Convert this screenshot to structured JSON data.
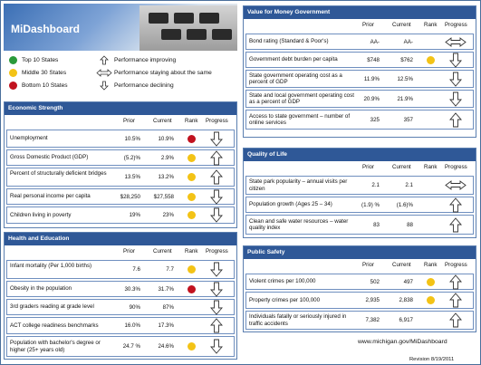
{
  "app": {
    "title": "MiDashboard"
  },
  "legend": {
    "top10": "Top 10 States",
    "middle30": "Middle 30 States",
    "bottom10": "Bottom 10 States",
    "improving": "Performance improving",
    "same": "Performance staying about the same",
    "declining": "Performance declining"
  },
  "columns": {
    "prior": "Prior",
    "current": "Current",
    "rank": "Rank",
    "progress": "Progress"
  },
  "economic": {
    "title": "Economic Strength",
    "rows": [
      {
        "label": "Unemployment",
        "prior": "10.5%",
        "current": "10.9%",
        "rank": "red",
        "progress": "down"
      },
      {
        "label": "Gross Domestic Product (GDP)",
        "prior": "(5.2)%",
        "current": "2.9%",
        "rank": "yellow",
        "progress": "up"
      },
      {
        "label": "Percent of structurally deficient bridges",
        "prior": "13.5%",
        "current": "13.2%",
        "rank": "yellow",
        "progress": "up"
      },
      {
        "label": "Real personal income per capita",
        "prior": "$28,250",
        "current": "$27,558",
        "rank": "yellow",
        "progress": "down"
      },
      {
        "label": "Children living in poverty",
        "prior": "19%",
        "current": "23%",
        "rank": "yellow",
        "progress": "down"
      }
    ]
  },
  "health": {
    "title": "Health and Education",
    "rows": [
      {
        "label": "Infant mortality (Per 1,000 births)",
        "prior": "7.6",
        "current": "7.7",
        "rank": "yellow",
        "progress": "down"
      },
      {
        "label": "Obesity in the population",
        "prior": "30.3%",
        "current": "31.7%",
        "rank": "red",
        "progress": "down"
      },
      {
        "label": "3rd graders reading at grade level",
        "prior": "90%",
        "current": "87%",
        "rank": "",
        "progress": "down"
      },
      {
        "label": "ACT college readiness benchmarks",
        "prior": "16.0%",
        "current": "17.3%",
        "rank": "",
        "progress": "up"
      },
      {
        "label": "Population with bachelor's degree or higher  (25+ years old)",
        "prior": "24.7 %",
        "current": "24.6%",
        "rank": "yellow",
        "progress": "down"
      }
    ]
  },
  "value": {
    "title": "Value for Money Government",
    "rows": [
      {
        "label": "Bond rating (Standard & Poor's)",
        "prior": "AA-",
        "current": "AA-",
        "rank": "",
        "progress": "same"
      },
      {
        "label": "Government debt burden per capita",
        "prior": "$748",
        "current": "$762",
        "rank": "yellow",
        "progress": "down"
      },
      {
        "label": "State government operating cost as a percent of GDP",
        "prior": "11.9%",
        "current": "12.5%",
        "rank": "",
        "progress": "down"
      },
      {
        "label": "State and  local government operating cost as a percent of GDP",
        "prior": "20.9%",
        "current": "21.9%",
        "rank": "",
        "progress": "down"
      },
      {
        "label": "Access to state government – number of online services",
        "prior": "325",
        "current": "357",
        "rank": "",
        "progress": "up"
      }
    ]
  },
  "quality": {
    "title": "Quality of Life",
    "rows": [
      {
        "label": "State park popularity – annual visits per citizen",
        "prior": "2.1",
        "current": "2.1",
        "rank": "",
        "progress": "same"
      },
      {
        "label": "Population growth (Ages 25 – 34)",
        "prior": "(1.9) %",
        "current": "(1.6)%",
        "rank": "",
        "progress": "up"
      },
      {
        "label": "Clean and safe water resources – water quality index",
        "prior": "83",
        "current": "88",
        "rank": "",
        "progress": "up"
      }
    ]
  },
  "safety": {
    "title": "Public Safety",
    "rows": [
      {
        "label": "Violent crimes per 100,000",
        "prior": "502",
        "current": "497",
        "rank": "yellow",
        "progress": "up"
      },
      {
        "label": "Property crimes per 100,000",
        "prior": "2,935",
        "current": "2,838",
        "rank": "yellow",
        "progress": "up"
      },
      {
        "label": "Individuals fatally or seriously injured in traffic accidents",
        "prior": "7,382",
        "current": "6,917",
        "rank": "",
        "progress": "up"
      }
    ]
  },
  "footer": {
    "url": "www.michigan.gov/MiDashboard",
    "revision": "Revision 8/19/2011"
  },
  "colors": {
    "header": "#2f5897",
    "top": "#2a9a3a",
    "middle": "#f3c316",
    "bottom": "#c1121f"
  }
}
